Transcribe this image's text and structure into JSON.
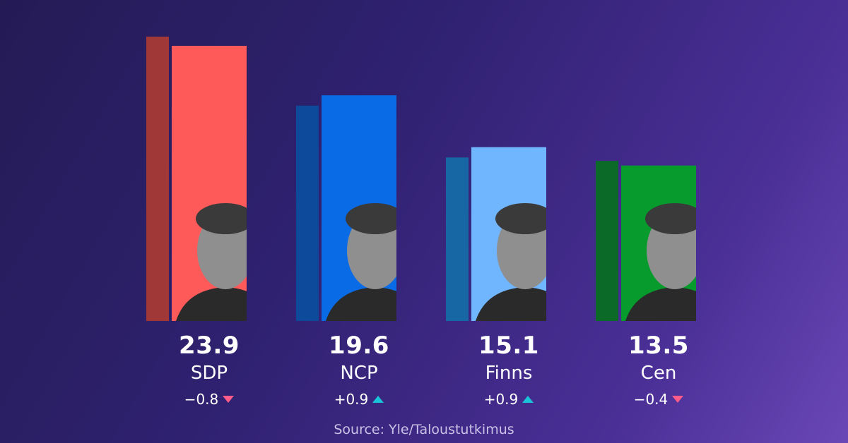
{
  "chart_data": {
    "type": "bar",
    "categories": [
      "SDP",
      "NCP",
      "Finns",
      "Cen"
    ],
    "values": [
      23.9,
      19.6,
      15.1,
      13.5
    ],
    "value_labels": [
      "23.9",
      "19.6",
      "15.1",
      "13.5"
    ],
    "previous_values": [
      24.7,
      18.7,
      14.2,
      13.9
    ],
    "changes": [
      "−0.8",
      "+0.9",
      "+0.9",
      "−0.4"
    ],
    "change_direction": [
      "down",
      "up",
      "up",
      "down"
    ],
    "colors": [
      "#ff5a5a",
      "#0a6be6",
      "#6fb6ff",
      "#079a2c"
    ],
    "previous_colors": [
      "#a03838",
      "#0d4a9c",
      "#1667a3",
      "#0b6a27"
    ],
    "ylim": [
      0,
      25
    ],
    "grid": false,
    "legend": "none",
    "source": "Source: Yle/Taloustutkimus"
  }
}
